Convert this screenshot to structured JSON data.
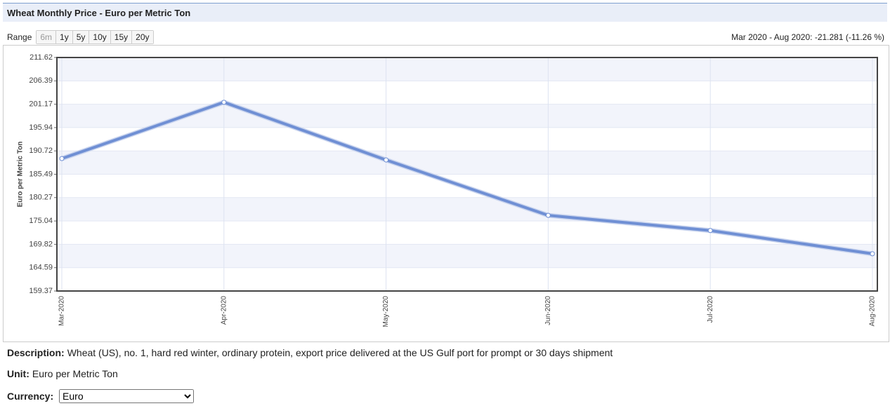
{
  "header": {
    "title": "Wheat Monthly Price - Euro per Metric Ton"
  },
  "range": {
    "label": "Range",
    "buttons": [
      "6m",
      "1y",
      "5y",
      "10y",
      "15y",
      "20y"
    ],
    "summary": "Mar 2020 - Aug 2020: -21.281 (-11.26 %)"
  },
  "chart_data": {
    "type": "line",
    "y_label": "Euro per Metric Ton",
    "categories": [
      "Mar-2020",
      "Apr-2020",
      "May-2020",
      "Jun-2020",
      "Jul-2020",
      "Aug-2020"
    ],
    "values": [
      189.0,
      201.6,
      188.7,
      176.3,
      172.9,
      167.7
    ],
    "color": "#6f8fd4",
    "ylim": [
      159.37,
      211.62
    ],
    "yticks": [
      159.37,
      164.59,
      169.82,
      175.04,
      180.27,
      185.49,
      190.72,
      195.94,
      201.17,
      206.39,
      211.62
    ],
    "grid": true
  },
  "description": {
    "label": "Description:",
    "text": "Wheat (US), no. 1, hard red winter, ordinary protein, export price delivered at the US Gulf port for prompt or 30 days shipment"
  },
  "unit": {
    "label": "Unit:",
    "text": "Euro per Metric Ton"
  },
  "currency": {
    "label": "Currency:",
    "selected": "Euro"
  }
}
